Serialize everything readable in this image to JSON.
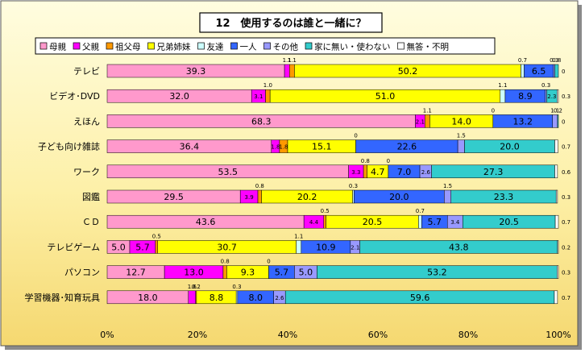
{
  "chart_data": {
    "type": "bar",
    "stacked": true,
    "orientation": "horizontal",
    "percent_stacked": true,
    "title": "12　使用するのは誰と一緒に？",
    "categories": [
      "テレビ",
      "ビデオ･DVD",
      "えほん",
      "子ども向け雑誌",
      "ワーク",
      "図鑑",
      "ＣＤ",
      "テレビゲーム",
      "パソコン",
      "学習機器･知育玩具"
    ],
    "series": [
      {
        "name": "母親",
        "color": "#ff99cc",
        "values": [
          39.3,
          32.0,
          68.3,
          36.4,
          53.5,
          29.5,
          43.6,
          5.0,
          12.7,
          18.0
        ]
      },
      {
        "name": "父親",
        "color": "#ff00ff",
        "values": [
          1.1,
          3.1,
          2.1,
          1.8,
          3.3,
          3.9,
          4.4,
          5.7,
          13.0,
          1.6
        ]
      },
      {
        "name": "祖父母",
        "color": "#ff9900",
        "values": [
          1.1,
          1.0,
          1.1,
          1.8,
          0.8,
          0.8,
          0.5,
          0.5,
          0.8,
          0.2
        ]
      },
      {
        "name": "兄弟姉妹",
        "color": "#ffff00",
        "values": [
          50.2,
          51.0,
          14.0,
          15.1,
          4.7,
          20.2,
          20.5,
          30.7,
          9.3,
          8.8
        ]
      },
      {
        "name": "友達",
        "color": "#ccffff",
        "values": [
          0.7,
          1.1,
          0,
          0,
          0,
          0.3,
          0.7,
          1.1,
          0,
          0.3
        ]
      },
      {
        "name": "一人",
        "color": "#3366ff",
        "values": [
          6.5,
          8.9,
          13.2,
          22.6,
          7.0,
          20.0,
          5.7,
          10.9,
          5.7,
          8.0
        ]
      },
      {
        "name": "その他",
        "color": "#9999ff",
        "values": [
          0.3,
          0.3,
          1.1,
          1.5,
          2.6,
          1.5,
          3.4,
          2.1,
          5.0,
          2.6
        ]
      },
      {
        "name": "家に無い・使わない",
        "color": "#33cccc",
        "values": [
          0.8,
          2.3,
          0.2,
          20.0,
          27.3,
          23.3,
          20.5,
          43.8,
          53.2,
          59.6
        ]
      },
      {
        "name": "無答・不明",
        "color": "#ffffff",
        "values": [
          0,
          0.3,
          0,
          0.7,
          0.6,
          0.3,
          0.7,
          0.2,
          0.3,
          0.7
        ]
      }
    ],
    "xlim": [
      0,
      100
    ],
    "xticks": [
      "0%",
      "20%",
      "40%",
      "60%",
      "80%",
      "100%"
    ],
    "legend_position": "top",
    "grid": false
  }
}
